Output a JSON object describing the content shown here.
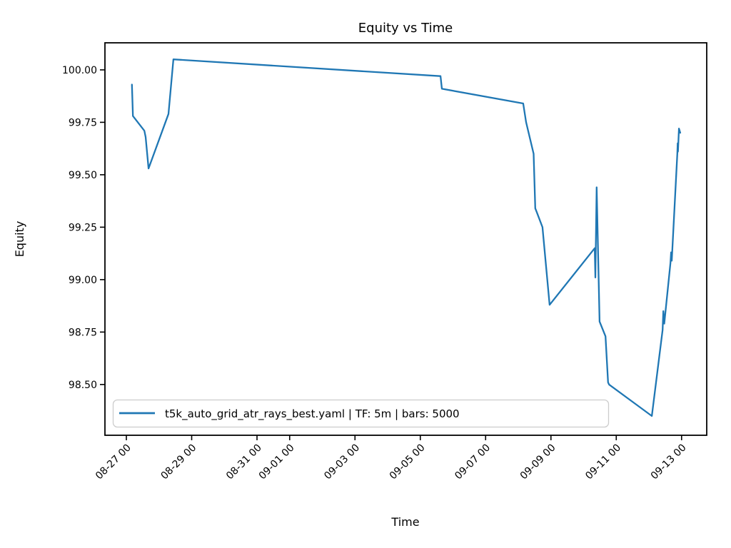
{
  "chart_data": {
    "type": "line",
    "title": "Equity vs Time",
    "xlabel": "Time",
    "ylabel": "Equity",
    "grid": false,
    "legend_position": "lower left",
    "legend": [
      "t5k_auto_grid_atr_rays_best.yaml | TF: 5m | bars: 5000"
    ],
    "line_color": "#1f77b4",
    "frame_color": "#000000",
    "legend_border_color": "#cccccc",
    "x_unit": "days since 08-27 00:00",
    "x_range": [
      -0.656,
      17.77
    ],
    "y_range": [
      98.258,
      100.129
    ],
    "x_ticks": [
      {
        "d": 0,
        "label": "08-27 00"
      },
      {
        "d": 2,
        "label": "08-29 00"
      },
      {
        "d": 4,
        "label": "08-31 00"
      },
      {
        "d": 5,
        "label": "09-01 00"
      },
      {
        "d": 7,
        "label": "09-03 00"
      },
      {
        "d": 9,
        "label": "09-05 00"
      },
      {
        "d": 11,
        "label": "09-07 00"
      },
      {
        "d": 13,
        "label": "09-09 00"
      },
      {
        "d": 15,
        "label": "09-11 00"
      },
      {
        "d": 17,
        "label": "09-13 00"
      }
    ],
    "y_ticks": [
      98.5,
      98.75,
      99.0,
      99.25,
      99.5,
      99.75,
      100.0
    ],
    "series": [
      {
        "name": "t5k_auto_grid_atr_rays_best.yaml | TF: 5m | bars: 5000",
        "points": [
          [
            0.17,
            99.93
          ],
          [
            0.2,
            99.78
          ],
          [
            0.55,
            99.71
          ],
          [
            0.59,
            99.68
          ],
          [
            0.68,
            99.53
          ],
          [
            1.29,
            99.79
          ],
          [
            1.44,
            100.05
          ],
          [
            9.62,
            99.97
          ],
          [
            9.66,
            99.91
          ],
          [
            12.15,
            99.84
          ],
          [
            12.24,
            99.75
          ],
          [
            12.47,
            99.6
          ],
          [
            12.52,
            99.34
          ],
          [
            12.57,
            99.32
          ],
          [
            12.74,
            99.25
          ],
          [
            12.96,
            98.88
          ],
          [
            14.34,
            99.15
          ],
          [
            14.36,
            99.01
          ],
          [
            14.4,
            99.44
          ],
          [
            14.49,
            98.8
          ],
          [
            14.67,
            98.73
          ],
          [
            14.75,
            98.51
          ],
          [
            14.78,
            98.5
          ],
          [
            16.09,
            98.35
          ],
          [
            16.42,
            98.76
          ],
          [
            16.44,
            98.85
          ],
          [
            16.47,
            98.79
          ],
          [
            16.66,
            99.08
          ],
          [
            16.68,
            99.13
          ],
          [
            16.7,
            99.09
          ],
          [
            16.87,
            99.6
          ],
          [
            16.88,
            99.65
          ],
          [
            16.89,
            99.61
          ],
          [
            16.92,
            99.72
          ],
          [
            16.96,
            99.7
          ]
        ]
      }
    ]
  }
}
